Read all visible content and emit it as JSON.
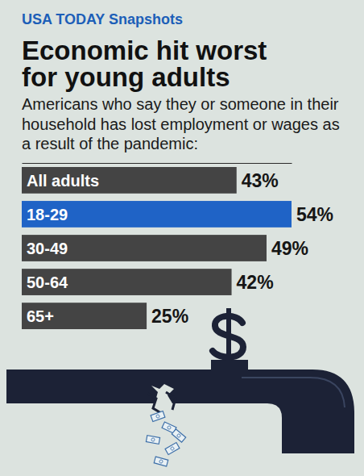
{
  "chart_data": {
    "type": "bar",
    "orientation": "horizontal",
    "source": "USA TODAY Snapshots",
    "title": "Economic hit worst for young adults",
    "subtitle": "Americans who say they or someone in their household has lost employment or wages as a result of the pandemic:",
    "categories": [
      "All adults",
      "18-29",
      "30-49",
      "50-64",
      "65+"
    ],
    "values": [
      43,
      54,
      49,
      42,
      25
    ],
    "value_labels": [
      "43%",
      "54%",
      "49%",
      "42%",
      "25%"
    ],
    "colors": [
      "#444444",
      "#1f63c6",
      "#444444",
      "#444444",
      "#444444"
    ],
    "xlim": [
      0,
      54
    ],
    "xticks": [],
    "data_labels": true,
    "tick_labels": "y",
    "grid": false
  }
}
